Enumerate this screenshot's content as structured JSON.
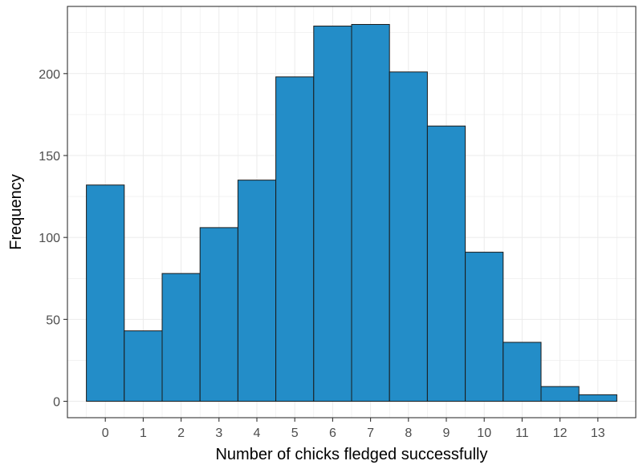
{
  "chart_data": {
    "type": "bar",
    "title": "",
    "xlabel": "Number of chicks fledged successfully",
    "ylabel": "Frequency",
    "categories": [
      "0",
      "1",
      "2",
      "3",
      "4",
      "5",
      "6",
      "7",
      "8",
      "9",
      "10",
      "11",
      "12",
      "13"
    ],
    "x": [
      0,
      1,
      2,
      3,
      4,
      5,
      6,
      7,
      8,
      9,
      10,
      11,
      12,
      13
    ],
    "values": [
      132,
      43,
      78,
      106,
      135,
      198,
      229,
      230,
      201,
      168,
      91,
      36,
      9,
      4
    ],
    "ylim": [
      -10,
      241
    ],
    "xlim": [
      -1,
      14
    ],
    "yticks": [
      0,
      50,
      100,
      150,
      200
    ],
    "grid": true,
    "bar_color": "#238dc8",
    "bar_edge_color": "#1a1a1a",
    "grid_color": "#ebebeb"
  }
}
